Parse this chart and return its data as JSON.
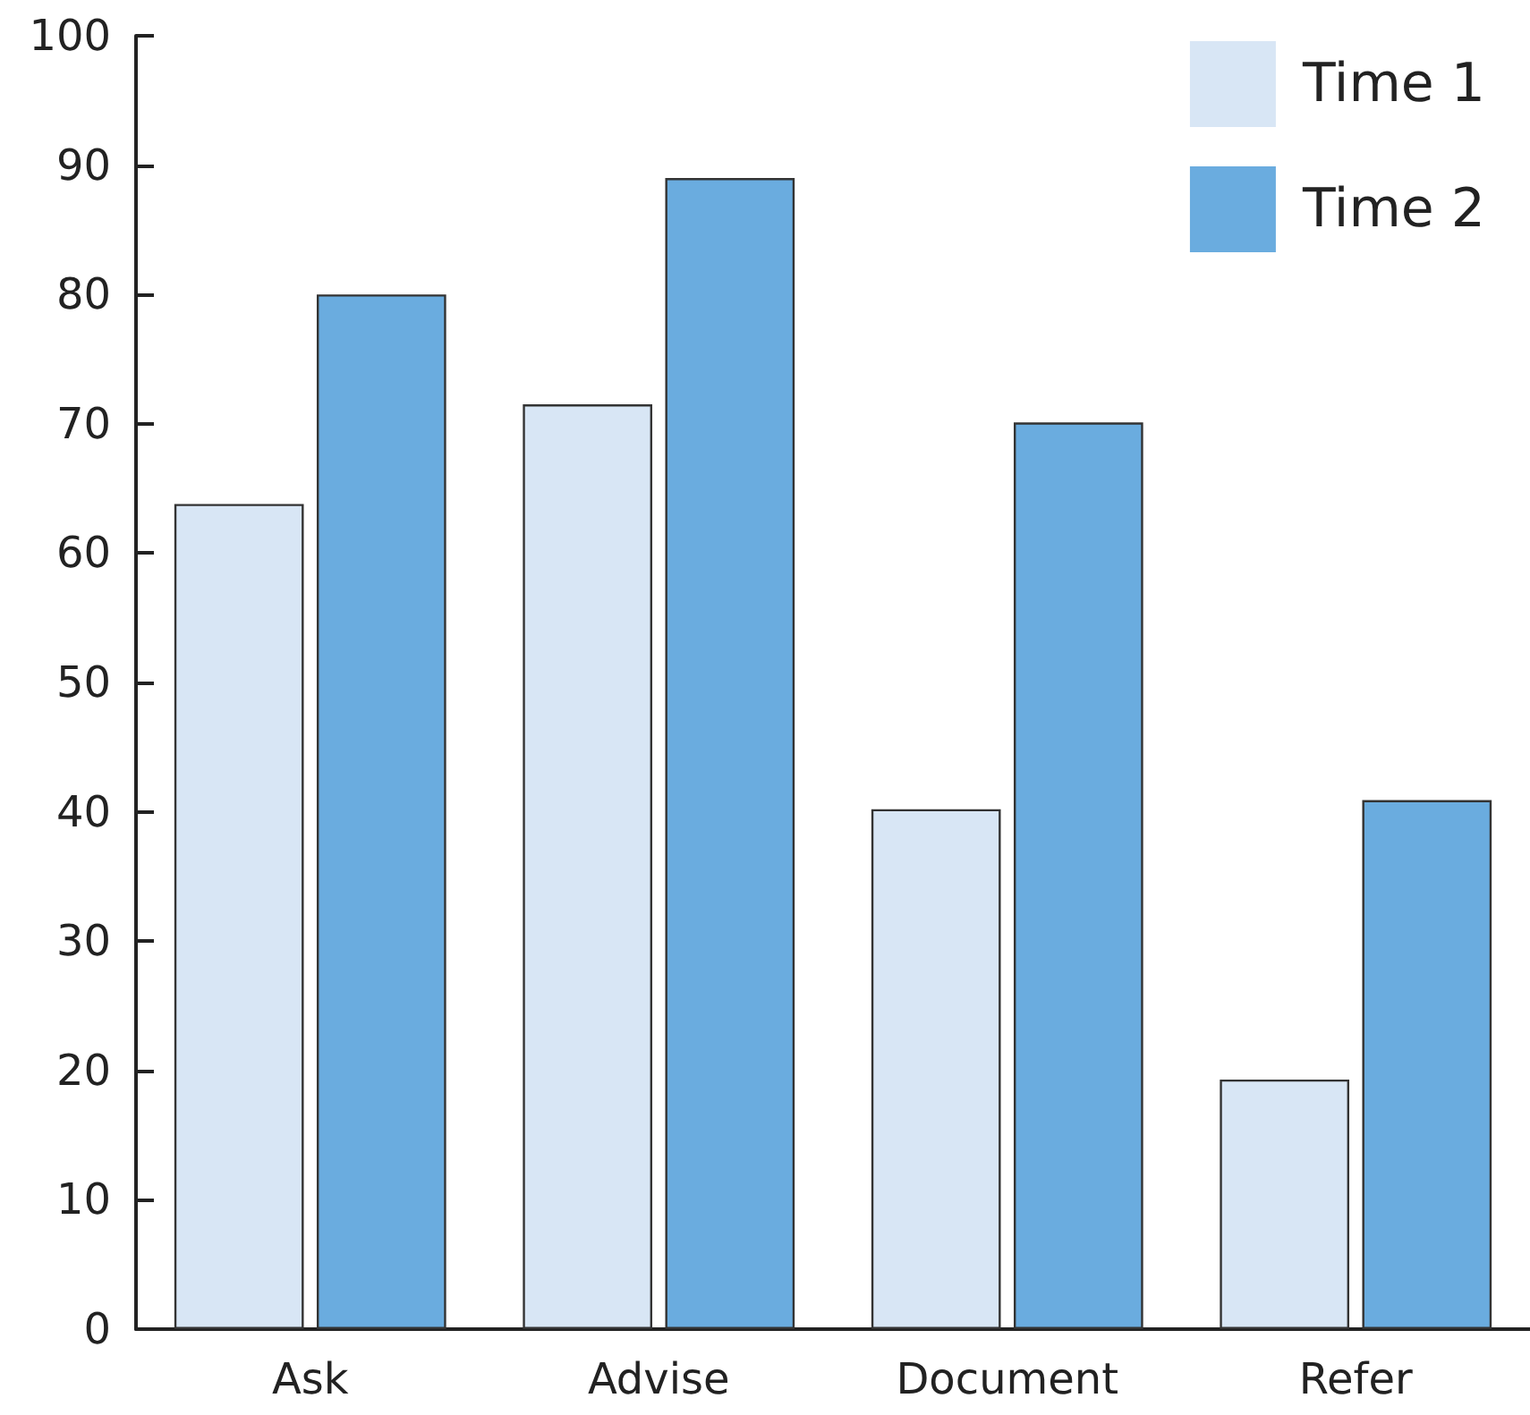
{
  "chart_data": {
    "type": "bar",
    "categories": [
      "Ask",
      "Advise",
      "Document",
      "Refer"
    ],
    "series": [
      {
        "name": "Time 1",
        "color": "#d8e6f5",
        "values": [
          63.8,
          71.5,
          40.2,
          19.3
        ]
      },
      {
        "name": "Time 2",
        "color": "#6aacdf",
        "values": [
          80,
          89,
          70.1,
          40.9
        ]
      }
    ],
    "ylim": [
      0,
      100
    ],
    "yticks": [
      0,
      10,
      20,
      30,
      40,
      50,
      60,
      70,
      80,
      90,
      100
    ],
    "grid": false,
    "legend": "top right"
  }
}
